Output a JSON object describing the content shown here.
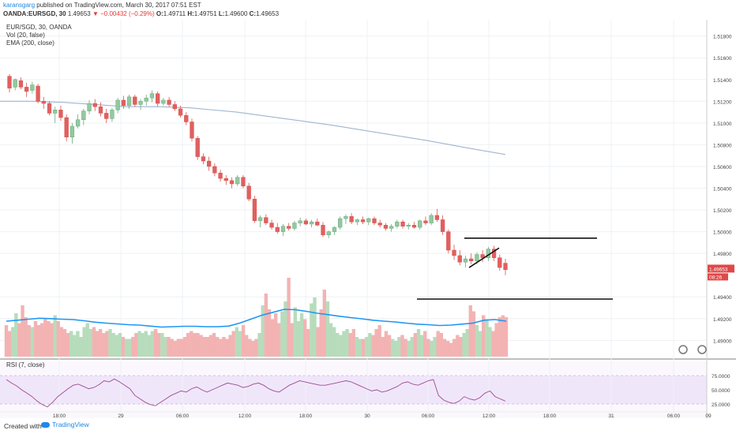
{
  "header": {
    "author": "karansgarg",
    "published_text": " published on TradingView.com, March 30, 2017 07:51 EST",
    "symbol": "OANDA:EURSGD, 30",
    "last_price": "1.49653",
    "arrow": "▼",
    "change": "−0.00432 (−0.29%)",
    "open_label": "O:",
    "open_value": "1.49711",
    "high_label": "H:",
    "high_value": "1.49751",
    "low_label": "L:",
    "low_value": "1.49600",
    "close_label": "C:",
    "close_value": "1.49653"
  },
  "legend": {
    "symbol": "EUR/SGD, 30, OANDA",
    "volume": "Vol (20, false)",
    "ema": "EMA (200, close)",
    "rsi": "RSI (7, close)"
  },
  "price_badge": {
    "price": "1.49653",
    "countdown": "08:26"
  },
  "footer": {
    "created_with": "Created with",
    "brand": "TradingView"
  },
  "colors": {
    "up": "#6aa97a",
    "up_body": "#93c9a0",
    "down": "#d9534f",
    "down_body": "#e06060",
    "vol_up": "#b7dcbc",
    "vol_down": "#f3b3b3",
    "ema": "#9fb5cf",
    "vol_ma": "#2196f3",
    "rsi_line": "#9c4d8f",
    "rsi_band": "#f0e6fa",
    "badge": "#e04848"
  },
  "chart_data": {
    "type": "candlestick",
    "instrument": "EUR/SGD",
    "timeframe": "30",
    "y_ticks": [
      "1.51800",
      "1.51600",
      "1.51400",
      "1.51200",
      "1.51000",
      "1.50800",
      "1.50600",
      "1.50400",
      "1.50200",
      "1.50000",
      "1.49800",
      "1.49400",
      "1.49200",
      "1.49000"
    ],
    "ylim": [
      1.4885,
      1.5195
    ],
    "x_ticks": [
      "18:00",
      "29",
      "06:00",
      "12:00",
      "18:00",
      "30",
      "06:00",
      "12:00",
      "18:00",
      "31",
      "06:00",
      "09"
    ],
    "candles": [
      [
        1.5143,
        1.5145,
        1.5128,
        1.5132
      ],
      [
        1.5133,
        1.5141,
        1.513,
        1.514
      ],
      [
        1.5139,
        1.5142,
        1.5131,
        1.5133
      ],
      [
        1.5133,
        1.5137,
        1.5124,
        1.5129
      ],
      [
        1.513,
        1.5138,
        1.5127,
        1.5135
      ],
      [
        1.5134,
        1.5136,
        1.5118,
        1.512
      ],
      [
        1.512,
        1.5124,
        1.5113,
        1.5118
      ],
      [
        1.5118,
        1.512,
        1.5107,
        1.5109
      ],
      [
        1.5109,
        1.5115,
        1.51,
        1.5112
      ],
      [
        1.5112,
        1.5116,
        1.5102,
        1.5105
      ],
      [
        1.5105,
        1.5108,
        1.5083,
        1.5087
      ],
      [
        1.5087,
        1.51,
        1.5081,
        1.5097
      ],
      [
        1.5097,
        1.5108,
        1.5095,
        1.5103
      ],
      [
        1.5103,
        1.5113,
        1.5098,
        1.5111
      ],
      [
        1.5111,
        1.5121,
        1.5108,
        1.5118
      ],
      [
        1.5118,
        1.5122,
        1.5111,
        1.5115
      ],
      [
        1.5115,
        1.5119,
        1.5106,
        1.5109
      ],
      [
        1.5109,
        1.5113,
        1.51,
        1.5104
      ],
      [
        1.5104,
        1.5114,
        1.5101,
        1.5112
      ],
      [
        1.5112,
        1.5123,
        1.5109,
        1.5121
      ],
      [
        1.5121,
        1.5125,
        1.5113,
        1.5116
      ],
      [
        1.5116,
        1.5126,
        1.5113,
        1.5124
      ],
      [
        1.5124,
        1.5126,
        1.5115,
        1.5117
      ],
      [
        1.5117,
        1.5122,
        1.5112,
        1.512
      ],
      [
        1.512,
        1.5126,
        1.5116,
        1.5123
      ],
      [
        1.5123,
        1.513,
        1.5119,
        1.5127
      ],
      [
        1.5127,
        1.5129,
        1.5115,
        1.5118
      ],
      [
        1.5118,
        1.5123,
        1.5116,
        1.5121
      ],
      [
        1.5121,
        1.5124,
        1.5115,
        1.5117
      ],
      [
        1.5117,
        1.512,
        1.5111,
        1.5113
      ],
      [
        1.5113,
        1.5116,
        1.5105,
        1.5107
      ],
      [
        1.5107,
        1.511,
        1.5098,
        1.5101
      ],
      [
        1.5101,
        1.5104,
        1.5083,
        1.5086
      ],
      [
        1.5086,
        1.5088,
        1.5066,
        1.5069
      ],
      [
        1.5069,
        1.5072,
        1.5062,
        1.5065
      ],
      [
        1.5065,
        1.5069,
        1.5056,
        1.506
      ],
      [
        1.506,
        1.5063,
        1.5051,
        1.5054
      ],
      [
        1.5054,
        1.5057,
        1.5046,
        1.5049
      ],
      [
        1.5049,
        1.5052,
        1.5043,
        1.5047
      ],
      [
        1.5047,
        1.505,
        1.504,
        1.5044
      ],
      [
        1.5044,
        1.5052,
        1.5042,
        1.505
      ],
      [
        1.505,
        1.5052,
        1.504,
        1.5042
      ],
      [
        1.5042,
        1.5045,
        1.5028,
        1.503
      ],
      [
        1.503,
        1.5033,
        1.5008,
        1.501
      ],
      [
        1.501,
        1.5015,
        1.5004,
        1.5013
      ],
      [
        1.5013,
        1.5016,
        1.5006,
        1.5008
      ],
      [
        1.5008,
        1.5011,
        1.5002,
        1.5004
      ],
      [
        1.5004,
        1.5008,
        1.4998,
        1.5
      ],
      [
        1.5,
        1.5007,
        1.4996,
        1.5005
      ],
      [
        1.5005,
        1.5008,
        1.5001,
        1.5003
      ],
      [
        1.5003,
        1.501,
        1.5001,
        1.5008
      ],
      [
        1.5008,
        1.5013,
        1.5005,
        1.501
      ],
      [
        1.501,
        1.5012,
        1.5006,
        1.5007
      ],
      [
        1.5007,
        1.5011,
        1.5004,
        1.5009
      ],
      [
        1.5009,
        1.5012,
        1.5005,
        1.5006
      ],
      [
        1.5006,
        1.5009,
        1.4995,
        1.4997
      ],
      [
        1.4997,
        1.5001,
        1.4994,
        1.5
      ],
      [
        1.5,
        1.5005,
        1.4997,
        1.5004
      ],
      [
        1.5004,
        1.5014,
        1.5002,
        1.5012
      ],
      [
        1.5012,
        1.5016,
        1.5007,
        1.5014
      ],
      [
        1.5014,
        1.5017,
        1.5007,
        1.5009
      ],
      [
        1.5009,
        1.5012,
        1.5006,
        1.5011
      ],
      [
        1.5011,
        1.5014,
        1.5007,
        1.5009
      ],
      [
        1.5009,
        1.5013,
        1.5006,
        1.5012
      ],
      [
        1.5012,
        1.5014,
        1.5006,
        1.5008
      ],
      [
        1.5008,
        1.5011,
        1.5004,
        1.5006
      ],
      [
        1.5006,
        1.5008,
        1.5001,
        1.5003
      ],
      [
        1.5003,
        1.5007,
        1.5,
        1.5005
      ],
      [
        1.5005,
        1.5011,
        1.5003,
        1.5009
      ],
      [
        1.5009,
        1.5011,
        1.5003,
        1.5005
      ],
      [
        1.5005,
        1.5008,
        1.5002,
        1.5006
      ],
      [
        1.5006,
        1.5009,
        1.5003,
        1.5004
      ],
      [
        1.5004,
        1.5011,
        1.5002,
        1.501
      ],
      [
        1.501,
        1.5014,
        1.5006,
        1.5008
      ],
      [
        1.5008,
        1.5017,
        1.5006,
        1.5015
      ],
      [
        1.5015,
        1.5021,
        1.5009,
        1.5011
      ],
      [
        1.5011,
        1.5015,
        1.4997,
        1.5
      ],
      [
        1.5,
        1.5002,
        1.498,
        1.4983
      ],
      [
        1.4983,
        1.4988,
        1.4974,
        1.4978
      ],
      [
        1.4978,
        1.4983,
        1.4969,
        1.4972
      ],
      [
        1.4972,
        1.4978,
        1.4967,
        1.4975
      ],
      [
        1.4975,
        1.498,
        1.497,
        1.4973
      ],
      [
        1.4973,
        1.4981,
        1.497,
        1.4979
      ],
      [
        1.4979,
        1.4983,
        1.4972,
        1.4976
      ],
      [
        1.4976,
        1.4986,
        1.4973,
        1.4984
      ],
      [
        1.4984,
        1.4987,
        1.4973,
        1.4976
      ],
      [
        1.4976,
        1.4979,
        1.4964,
        1.4967
      ],
      [
        1.4971,
        1.4975,
        1.496,
        1.4965
      ]
    ],
    "volume": [
      16,
      13,
      15,
      22,
      17,
      26,
      20,
      16,
      15,
      18,
      16,
      17,
      19,
      18,
      17,
      21,
      18,
      15,
      14,
      12,
      13,
      11,
      13,
      10,
      15,
      17,
      14,
      15,
      13,
      14,
      12,
      13,
      14,
      12,
      11,
      12,
      10,
      9,
      9,
      10,
      12,
      13,
      12,
      13,
      11,
      13,
      14,
      12,
      12,
      10,
      10,
      9,
      8,
      9,
      9,
      10,
      12,
      13,
      12,
      12,
      11,
      10,
      10,
      11,
      12,
      10,
      9,
      10,
      9,
      11,
      13,
      15,
      13,
      16,
      11,
      9,
      8,
      9,
      12,
      26,
      32,
      24,
      19,
      22,
      17,
      23,
      28,
      40,
      17,
      25,
      18,
      22,
      19,
      14,
      27,
      30,
      15,
      24,
      34,
      28,
      17,
      15,
      12,
      11,
      13,
      14,
      12,
      14,
      10,
      9,
      9,
      10,
      12,
      11,
      14,
      16,
      10,
      13,
      11,
      9,
      8,
      10,
      11,
      9,
      8,
      10,
      12,
      14,
      11,
      13,
      9,
      8,
      10,
      13,
      12,
      9,
      8,
      7,
      9,
      11,
      10,
      12,
      14,
      26,
      23,
      16,
      13,
      21,
      19,
      15,
      13,
      17,
      20,
      21,
      20
    ],
    "vol_ma": [
      18,
      18.5,
      19,
      19.5,
      19.3,
      19,
      18.8,
      18.2,
      17.5,
      17,
      16.6,
      16.2,
      16,
      15.5,
      15,
      15.2,
      15.4,
      15.4,
      15.2,
      15.2,
      15.5,
      17,
      19,
      21,
      22.5,
      24,
      23.8,
      23,
      22,
      21.3,
      20.5,
      19.8,
      19.2,
      18.5,
      18,
      17.6,
      17,
      16.5,
      16.2,
      15.8,
      16,
      16.5,
      17,
      18.5,
      18.8,
      18
    ],
    "rsi": [
      68,
      62,
      57,
      50,
      44,
      38,
      30,
      24,
      20,
      28,
      38,
      45,
      52,
      58,
      60,
      56,
      52,
      54,
      59,
      66,
      64,
      69,
      64,
      58,
      52,
      40,
      34,
      28,
      24,
      22,
      28,
      34,
      40,
      44,
      48,
      46,
      52,
      55,
      50,
      46,
      50,
      54,
      58,
      62,
      60,
      58,
      54,
      56,
      60,
      62,
      58,
      52,
      48,
      46,
      52,
      58,
      62,
      66,
      64,
      62,
      60,
      58,
      58,
      60,
      62,
      64,
      66,
      64,
      60,
      56,
      52,
      48,
      50,
      46,
      48,
      52,
      56,
      62,
      64,
      60,
      58,
      62,
      66,
      68,
      40,
      32,
      28,
      26,
      30,
      38,
      34,
      32,
      36,
      44,
      48,
      38,
      34,
      30
    ],
    "rsi_ticks": [
      "75.0000",
      "50.0000",
      "25.0000"
    ],
    "rsi_ylim": [
      0,
      100
    ],
    "ema": [
      [
        0,
        1.512
      ],
      [
        40,
        1.512
      ],
      [
        80,
        1.5119
      ],
      [
        120,
        1.5117
      ],
      [
        160,
        1.5115
      ],
      [
        200,
        1.5115
      ],
      [
        240,
        1.5114
      ],
      [
        300,
        1.511
      ],
      [
        360,
        1.5104
      ],
      [
        420,
        1.5098
      ],
      [
        480,
        1.5091
      ],
      [
        540,
        1.5084
      ],
      [
        600,
        1.5076
      ],
      [
        640,
        1.5071
      ]
    ],
    "annotations": [
      {
        "type": "hline",
        "price": 1.4994,
        "x1": 588,
        "x2": 756
      },
      {
        "type": "hline",
        "price": 1.4938,
        "x1": 528,
        "x2": 776
      },
      {
        "type": "line",
        "p1": 1.4967,
        "p2": 1.4985,
        "x1": 594,
        "x2": 632
      }
    ]
  }
}
